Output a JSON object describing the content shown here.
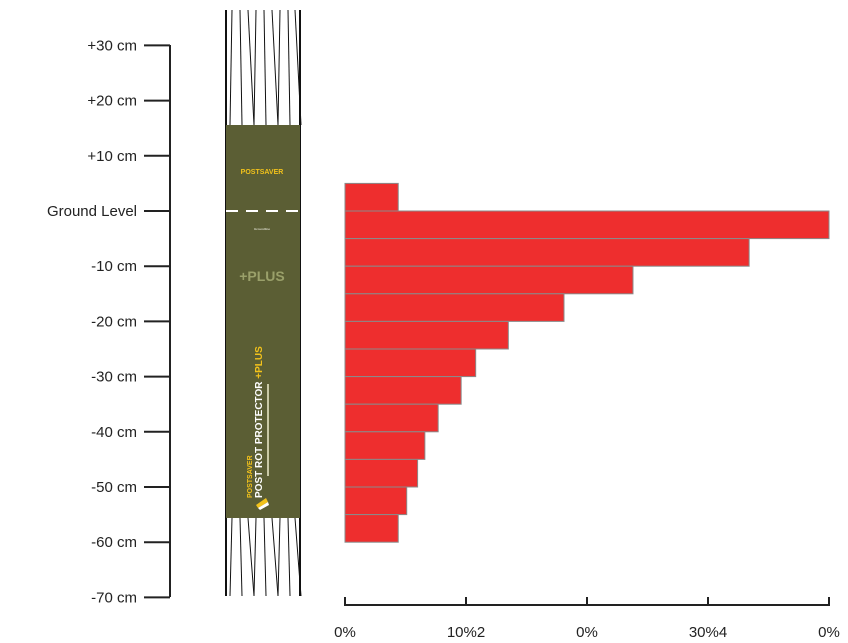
{
  "chart_data": {
    "type": "bar",
    "orientation": "horizontal",
    "y_tick_labels": [
      "+30 cm",
      "+20 cm",
      "+10 cm",
      "Ground Level",
      "-10 cm",
      "-20 cm",
      "-30 cm",
      "-40 cm",
      "-50 cm",
      "-60 cm",
      "-70 cm"
    ],
    "y_ticks_cm": [
      30,
      20,
      10,
      0,
      -10,
      -20,
      -30,
      -40,
      -50,
      -60,
      -70
    ],
    "x_tick_labels": [
      "0%",
      "10%2",
      "0%",
      "30%4",
      "0%"
    ],
    "x_ticks": [
      0,
      10,
      20,
      30,
      40
    ],
    "xlim": [
      0,
      40
    ],
    "ylim": [
      -70,
      30
    ],
    "bars": [
      {
        "top_cm": 5,
        "bottom_cm": 0,
        "value": 4.4
      },
      {
        "top_cm": 0,
        "bottom_cm": -5,
        "value": 40.0
      },
      {
        "top_cm": -5,
        "bottom_cm": -10,
        "value": 33.4
      },
      {
        "top_cm": -10,
        "bottom_cm": -15,
        "value": 23.8
      },
      {
        "top_cm": -15,
        "bottom_cm": -20,
        "value": 18.1
      },
      {
        "top_cm": -20,
        "bottom_cm": -25,
        "value": 13.5
      },
      {
        "top_cm": -25,
        "bottom_cm": -30,
        "value": 10.8
      },
      {
        "top_cm": -30,
        "bottom_cm": -35,
        "value": 9.6
      },
      {
        "top_cm": -35,
        "bottom_cm": -40,
        "value": 7.7
      },
      {
        "top_cm": -40,
        "bottom_cm": -45,
        "value": 6.6
      },
      {
        "top_cm": -45,
        "bottom_cm": -50,
        "value": 6.0
      },
      {
        "top_cm": -50,
        "bottom_cm": -55,
        "value": 5.1
      },
      {
        "top_cm": -55,
        "bottom_cm": -60,
        "value": 4.4
      }
    ],
    "bar_color": "#ee2e2e",
    "bar_outline": "#8a8a8a",
    "grid": false,
    "legend": "none"
  },
  "post_illustration": {
    "brand": "POSTSAVER",
    "ground_mark": "Groundline",
    "plus_label": "+PLUS",
    "product_brand": "POSTSAVER",
    "product_name": "POST ROT PROTECTOR",
    "product_plus": "+PLUS",
    "sleeve_color": "#5b5e34",
    "brand_color": "#f2c21b"
  }
}
